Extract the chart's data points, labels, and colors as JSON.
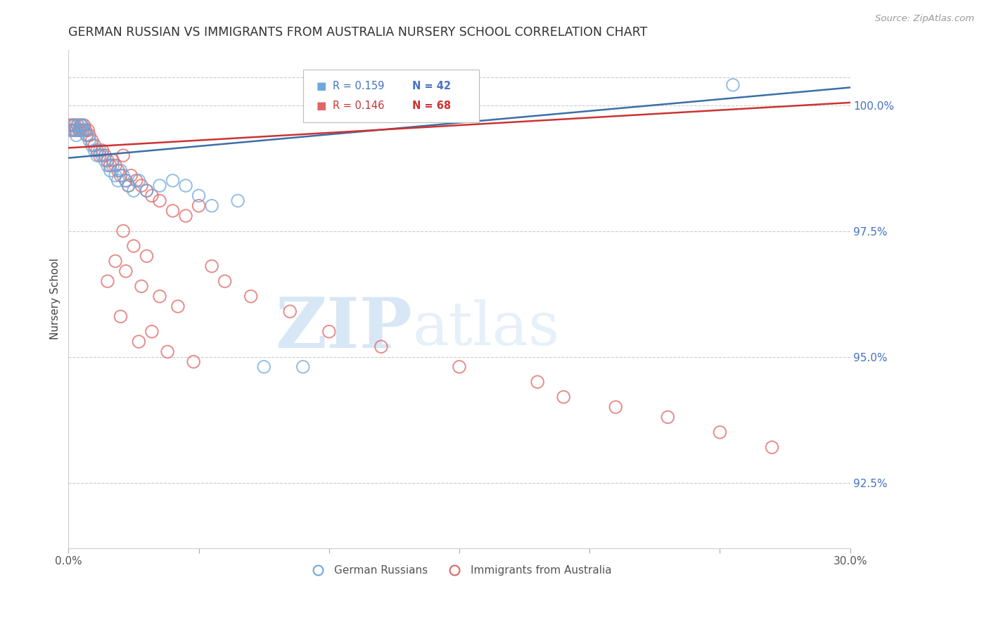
{
  "title": "GERMAN RUSSIAN VS IMMIGRANTS FROM AUSTRALIA NURSERY SCHOOL CORRELATION CHART",
  "source": "Source: ZipAtlas.com",
  "ylabel": "Nursery School",
  "yticks": [
    92.5,
    95.0,
    97.5,
    100.0
  ],
  "ytick_labels": [
    "92.5%",
    "95.0%",
    "97.5%",
    "100.0%"
  ],
  "xmin": 0.0,
  "xmax": 30.0,
  "ymin": 91.2,
  "ymax": 101.1,
  "blue_color": "#6fa8dc",
  "pink_color": "#e06666",
  "trendline_blue": "#3d6fa8",
  "trendline_pink": "#cc3333",
  "watermark_zip": "ZIP",
  "watermark_atlas": "atlas",
  "blue_scatter_x": [
    0.15,
    0.2,
    0.25,
    0.3,
    0.35,
    0.4,
    0.45,
    0.5,
    0.55,
    0.6,
    0.7,
    0.8,
    0.9,
    1.0,
    1.1,
    1.2,
    1.3,
    1.4,
    1.5,
    1.6,
    1.7,
    1.8,
    1.9,
    2.0,
    2.1,
    2.2,
    2.3,
    2.5,
    2.7,
    3.0,
    3.5,
    4.0,
    4.5,
    5.0,
    5.5,
    6.5,
    7.5,
    9.0,
    25.5
  ],
  "blue_scatter_y": [
    99.5,
    99.6,
    99.5,
    99.4,
    99.6,
    99.5,
    99.6,
    99.5,
    99.6,
    99.5,
    99.4,
    99.3,
    99.2,
    99.1,
    99.0,
    99.1,
    99.0,
    98.9,
    98.8,
    98.7,
    98.8,
    98.6,
    98.5,
    98.7,
    98.6,
    98.5,
    98.4,
    98.3,
    98.5,
    98.3,
    98.4,
    98.5,
    98.4,
    98.2,
    98.0,
    98.1,
    94.8,
    94.8,
    100.4
  ],
  "pink_scatter_x": [
    0.05,
    0.1,
    0.15,
    0.2,
    0.25,
    0.3,
    0.35,
    0.4,
    0.45,
    0.5,
    0.55,
    0.6,
    0.65,
    0.7,
    0.75,
    0.8,
    0.9,
    1.0,
    1.1,
    1.2,
    1.3,
    1.4,
    1.5,
    1.6,
    1.7,
    1.8,
    1.9,
    2.0,
    2.1,
    2.2,
    2.3,
    2.4,
    2.6,
    2.8,
    3.0,
    3.2,
    3.5,
    4.0,
    4.5,
    5.0,
    2.1,
    2.5,
    3.0,
    1.8,
    2.2,
    1.5,
    2.8,
    3.5,
    4.2,
    2.0,
    3.2,
    2.7,
    3.8,
    4.8,
    5.5,
    6.0,
    7.0,
    8.5,
    10.0,
    12.0,
    15.0,
    18.0,
    19.0,
    21.0,
    23.0,
    25.0,
    27.0
  ],
  "pink_scatter_y": [
    99.6,
    99.5,
    99.6,
    99.5,
    99.6,
    99.5,
    99.6,
    99.5,
    99.5,
    99.6,
    99.5,
    99.6,
    99.5,
    99.4,
    99.5,
    99.4,
    99.3,
    99.2,
    99.1,
    99.0,
    99.1,
    99.0,
    98.9,
    98.8,
    98.9,
    98.8,
    98.7,
    98.6,
    99.0,
    98.5,
    98.4,
    98.6,
    98.5,
    98.4,
    98.3,
    98.2,
    98.1,
    97.9,
    97.8,
    98.0,
    97.5,
    97.2,
    97.0,
    96.9,
    96.7,
    96.5,
    96.4,
    96.2,
    96.0,
    95.8,
    95.5,
    95.3,
    95.1,
    94.9,
    96.8,
    96.5,
    96.2,
    95.9,
    95.5,
    95.2,
    94.8,
    94.5,
    94.2,
    94.0,
    93.8,
    93.5,
    93.2
  ],
  "trend_blue_x0": 0.0,
  "trend_blue_x1": 30.0,
  "trend_blue_y0": 98.95,
  "trend_blue_y1": 100.35,
  "trend_pink_x0": 0.0,
  "trend_pink_x1": 30.0,
  "trend_pink_y0": 99.15,
  "trend_pink_y1": 100.05
}
